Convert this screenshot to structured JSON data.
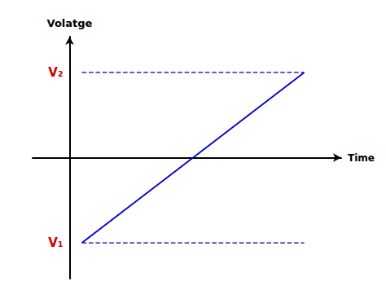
{
  "chart_data": {
    "type": "line",
    "xlabel": "Time",
    "ylabel": "Volatge",
    "x": [
      0.05,
      0.95
    ],
    "series": [
      {
        "values": [
          -1.0,
          1.0
        ],
        "color": "#0000CC",
        "line_style": "solid"
      },
      {
        "values": [
          1.0,
          1.0
        ],
        "color": "#0000AA",
        "line_style": "dashed"
      },
      {
        "values": [
          -1.0,
          -1.0
        ],
        "color": "#0000AA",
        "line_style": "dashed"
      }
    ],
    "xlim": [
      -0.15,
      1.1
    ],
    "ylim": [
      -1.42,
      1.42
    ],
    "tick_labels": false,
    "grid": false,
    "annotations": [
      {
        "text": "V₂",
        "y": 1.0,
        "color": "#CC0000"
      },
      {
        "text": "V₁",
        "y": -1.0,
        "color": "#CC0000"
      }
    ]
  }
}
